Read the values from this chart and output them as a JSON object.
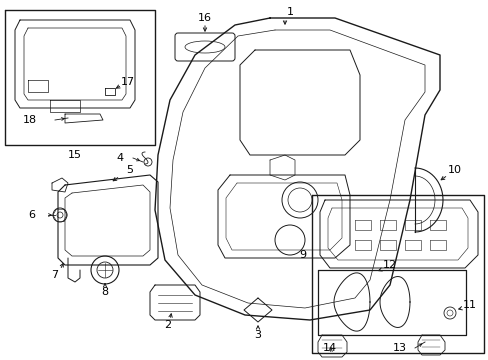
{
  "bg_color": "#ffffff",
  "line_color": "#1a1a1a",
  "fig_width": 4.89,
  "fig_height": 3.6,
  "dpi": 100,
  "font_size": 7.5,
  "label_font_size": 8.0
}
